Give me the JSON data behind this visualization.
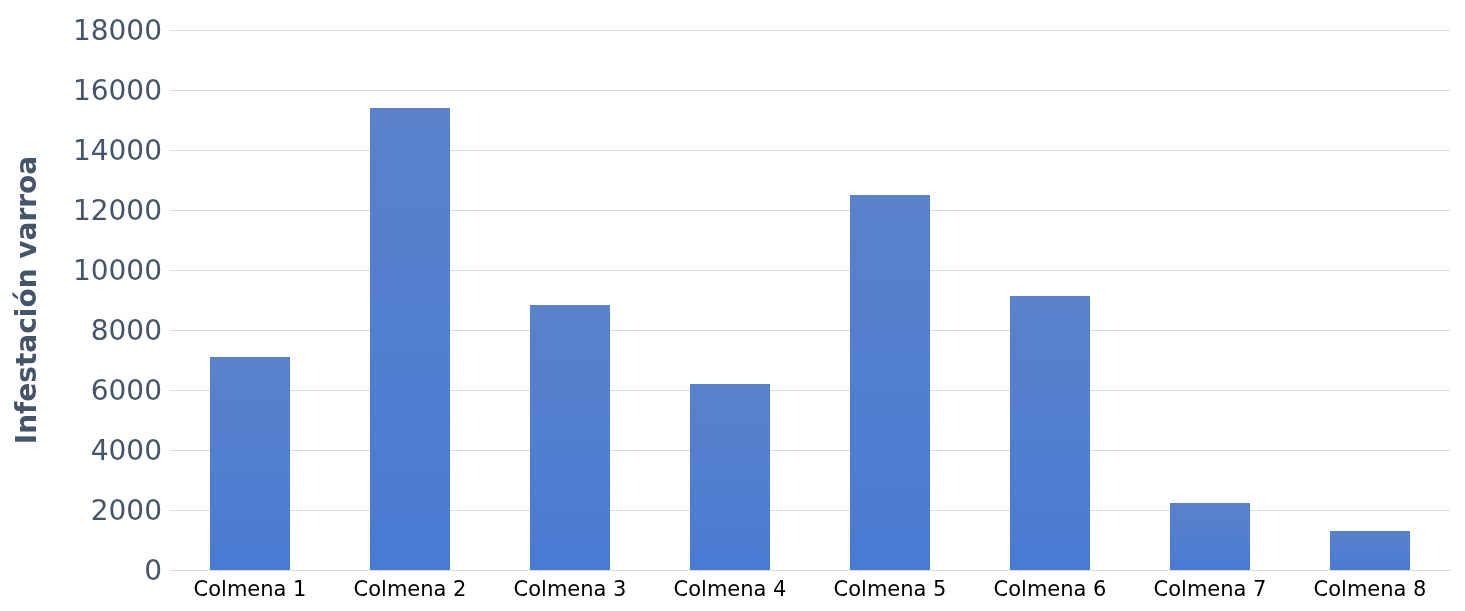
{
  "chart_data": {
    "type": "bar",
    "ylabel": "Infestación varroa",
    "categories": [
      "Colmena 1",
      "Colmena 2",
      "Colmena 3",
      "Colmena 4",
      "Colmena 5",
      "Colmena 6",
      "Colmena 7",
      "Colmena 8"
    ],
    "values": [
      7100,
      15400,
      8830,
      6200,
      12500,
      9130,
      2230,
      1300
    ],
    "color": "#4472c4",
    "ylim": [
      0,
      18000
    ],
    "yticks": [
      0,
      2000,
      4000,
      6000,
      8000,
      10000,
      12000,
      14000,
      16000,
      18000
    ],
    "grid": "y"
  }
}
